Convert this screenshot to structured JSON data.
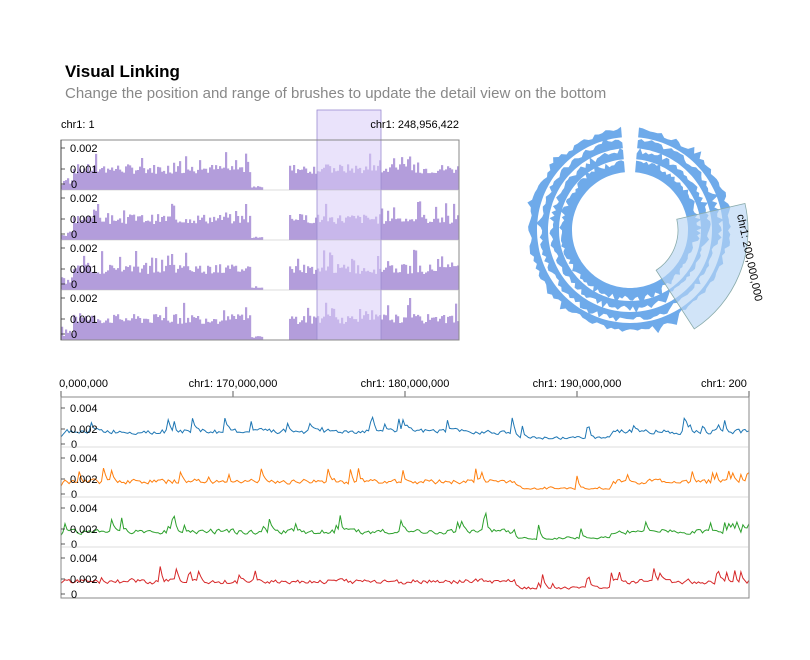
{
  "header": {
    "title": "Visual Linking",
    "subtitle": "Change the position and range of brushes to update the detail view on the bottom"
  },
  "colors": {
    "overview_bar": "#b39ddb",
    "brush": "#d9ccf7",
    "circular": "#6eaaea",
    "circular_brush": "#b9d5f5",
    "series": [
      "#1f77b4",
      "#ff7f0e",
      "#2ca02c",
      "#d62728"
    ]
  },
  "chart_data": [
    {
      "type": "bar",
      "name": "overview",
      "x_start_label": "chr1: 1",
      "x_end_label": "chr1: 248,956,422",
      "y_ticks": [
        "0.002",
        "0.001",
        "0"
      ],
      "tracks": 4,
      "brush_label": ""
    },
    {
      "type": "area",
      "name": "circular",
      "brush_label": "chr1: 200,000,000",
      "rings": 4
    },
    {
      "type": "line",
      "name": "detail",
      "x_tick_labels": [
        "0,000,000",
        "chr1: 170,000,000",
        "chr1: 180,000,000",
        "chr1: 190,000,000",
        "chr1: 200"
      ],
      "y_ticks": [
        "0.004",
        "0.002",
        "0"
      ],
      "tracks": 4
    }
  ]
}
